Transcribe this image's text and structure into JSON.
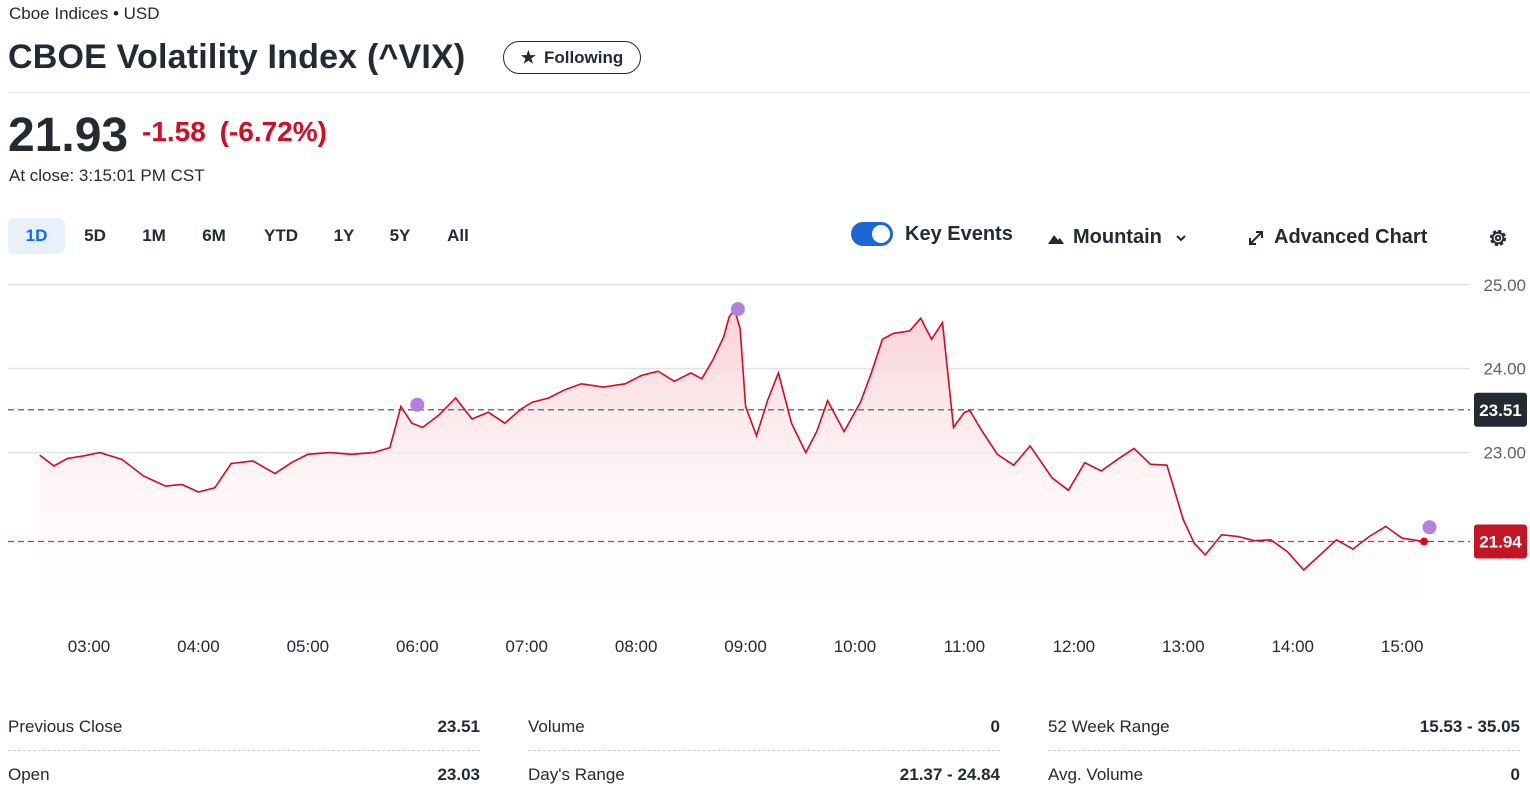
{
  "header": {
    "exchange": "Cboe Indices • USD",
    "title": "CBOE Volatility Index (^VIX)",
    "follow_label": "Following"
  },
  "quote": {
    "price": "21.93",
    "change": "-1.58",
    "change_pct": "(-6.72%)",
    "close_time": "At close: 3:15:01 PM CST"
  },
  "toolbar": {
    "ranges": [
      "1D",
      "5D",
      "1M",
      "6M",
      "YTD",
      "1Y",
      "5Y",
      "All"
    ],
    "active_range": "1D",
    "key_events_label": "Key Events",
    "key_events_on": true,
    "chart_type_label": "Mountain",
    "advanced_chart_label": "Advanced Chart"
  },
  "chart_data": {
    "type": "area",
    "y_ticks": [
      "25.00",
      "24.00",
      "23.00"
    ],
    "ylim": [
      21.1,
      25.2
    ],
    "x_ticks": [
      "03:00",
      "04:00",
      "05:00",
      "06:00",
      "07:00",
      "08:00",
      "09:00",
      "10:00",
      "11:00",
      "12:00",
      "13:00",
      "14:00",
      "15:00"
    ],
    "xlim_hours": [
      2.26,
      15.62
    ],
    "previous_close": 23.51,
    "previous_close_label": "23.51",
    "last_price": 21.94,
    "last_price_label": "21.94",
    "x": [
      2.55,
      2.68,
      2.8,
      2.95,
      3.1,
      3.3,
      3.5,
      3.7,
      3.85,
      4.0,
      4.15,
      4.3,
      4.5,
      4.7,
      4.85,
      5.0,
      5.2,
      5.4,
      5.6,
      5.75,
      5.85,
      5.95,
      6.05,
      6.2,
      6.35,
      6.5,
      6.65,
      6.8,
      6.95,
      7.05,
      7.2,
      7.35,
      7.5,
      7.7,
      7.9,
      8.05,
      8.2,
      8.35,
      8.5,
      8.6,
      8.7,
      8.8,
      8.85,
      8.9,
      8.95,
      9.0,
      9.1,
      9.2,
      9.3,
      9.42,
      9.55,
      9.65,
      9.75,
      9.9,
      10.05,
      10.15,
      10.25,
      10.35,
      10.5,
      10.6,
      10.7,
      10.8,
      10.9,
      11.0,
      11.05,
      11.15,
      11.3,
      11.45,
      11.6,
      11.8,
      11.95,
      12.1,
      12.25,
      12.4,
      12.55,
      12.7,
      12.85,
      13.0,
      13.1,
      13.2,
      13.35,
      13.5,
      13.65,
      13.8,
      13.95,
      14.1,
      14.25,
      14.4,
      14.55,
      14.7,
      14.85,
      15.0,
      15.2
    ],
    "values": [
      22.97,
      22.84,
      22.93,
      22.96,
      23.0,
      22.92,
      22.72,
      22.6,
      22.62,
      22.53,
      22.58,
      22.87,
      22.9,
      22.75,
      22.88,
      22.98,
      23.0,
      22.98,
      23.0,
      23.06,
      23.55,
      23.35,
      23.3,
      23.45,
      23.65,
      23.4,
      23.48,
      23.35,
      23.52,
      23.6,
      23.65,
      23.75,
      23.82,
      23.78,
      23.82,
      23.92,
      23.97,
      23.85,
      23.95,
      23.88,
      24.1,
      24.38,
      24.62,
      24.7,
      24.48,
      23.55,
      23.2,
      23.62,
      23.95,
      23.35,
      23.0,
      23.25,
      23.62,
      23.25,
      23.6,
      23.95,
      24.35,
      24.42,
      24.45,
      24.6,
      24.35,
      24.55,
      23.3,
      23.48,
      23.5,
      23.28,
      22.98,
      22.85,
      23.08,
      22.7,
      22.55,
      22.88,
      22.78,
      22.92,
      23.05,
      22.86,
      22.85,
      22.2,
      21.92,
      21.78,
      22.02,
      22.0,
      21.95,
      21.96,
      21.82,
      21.6,
      21.78,
      21.96,
      21.85,
      22.0,
      22.12,
      21.98,
      21.94
    ],
    "key_events_x": [
      6.0,
      8.93,
      15.25
    ],
    "key_events_y": [
      23.57,
      24.71,
      22.11
    ],
    "colors": {
      "line": "#d60a22",
      "area_top": "#f7ccd2",
      "event_dot": "#b180e0",
      "prev_close_line": "#6e7780",
      "prev_close_label_bg": "#232a31",
      "last_price_bg": "#c51423",
      "grid": "#e0e4e9"
    }
  },
  "stats": {
    "col1": [
      {
        "label": "Previous Close",
        "value": "23.51"
      },
      {
        "label": "Open",
        "value": "23.03"
      }
    ],
    "col2": [
      {
        "label": "Volume",
        "value": "0"
      },
      {
        "label": "Day's Range",
        "value": "21.37 - 24.84"
      }
    ],
    "col3": [
      {
        "label": "52 Week Range",
        "value": "15.53 - 35.05"
      },
      {
        "label": "Avg. Volume",
        "value": "0"
      }
    ]
  }
}
